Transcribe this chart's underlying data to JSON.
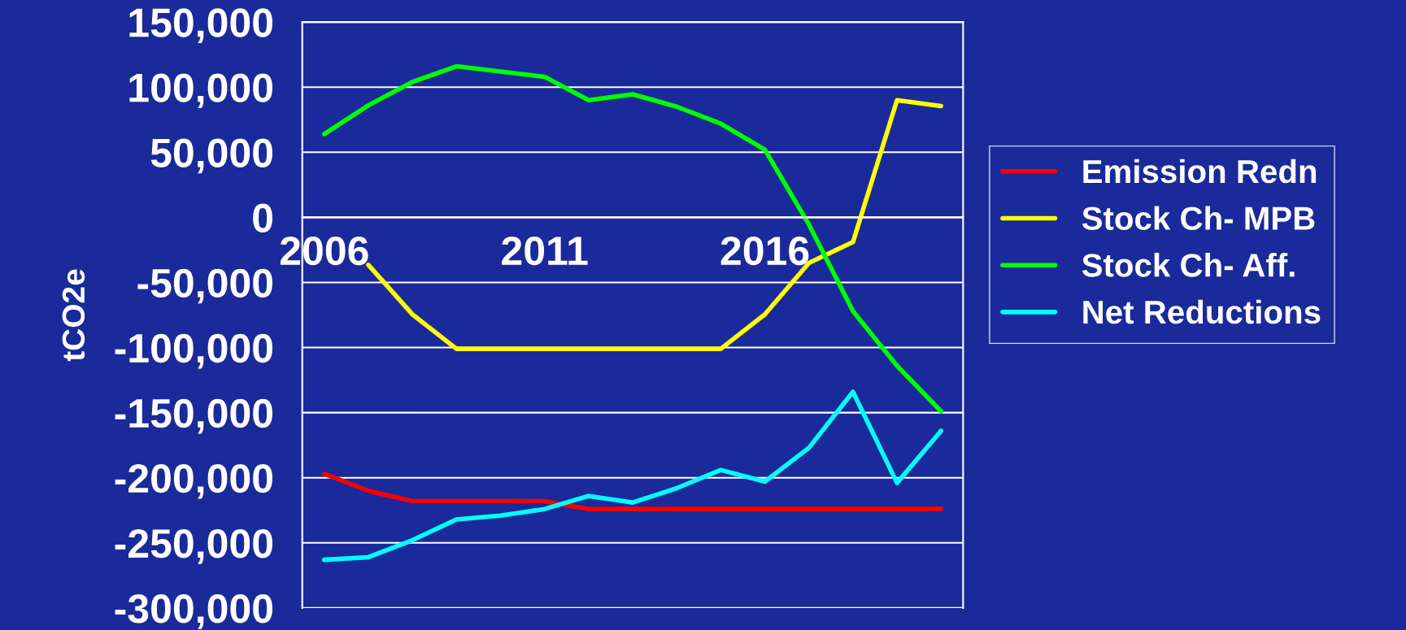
{
  "chart_data": {
    "type": "line",
    "ylabel": "tCO2e",
    "categories": [
      "2006",
      null,
      null,
      null,
      null,
      "2011",
      null,
      null,
      null,
      null,
      "2016",
      null,
      null,
      null,
      null
    ],
    "series": [
      {
        "name": "Emission Redn",
        "color": "#ff0000",
        "values": [
          -197000,
          -210000,
          -218000,
          -218000,
          -218000,
          -218000,
          -224000,
          -224000,
          -224000,
          -224000,
          -224000,
          -224000,
          -224000,
          -224000,
          -224000
        ]
      },
      {
        "name": "Stock Ch- MPB",
        "color": "#ffff00",
        "values": [
          null,
          -36500,
          -74500,
          -101000,
          -101000,
          -101000,
          -101000,
          -101000,
          -101000,
          -101000,
          -74500,
          -35000,
          -19000,
          90000,
          85500
        ]
      },
      {
        "name": "Stock Ch- Aff.",
        "color": "#00ff00",
        "values": [
          64000,
          86000,
          104000,
          116000,
          112000,
          108000,
          90000,
          94500,
          85000,
          72000,
          52000,
          -5500,
          -72000,
          -114000,
          -149000
        ]
      },
      {
        "name": "Net Reductions",
        "color": "#00ffff",
        "values": [
          -263000,
          -261000,
          -248000,
          -232000,
          -229000,
          -224000,
          -214000,
          -219000,
          -208000,
          -194000,
          -203000,
          -177000,
          -134000,
          -204000,
          -164000
        ]
      }
    ],
    "ylim": [
      -300000,
      150000
    ],
    "yticks": [
      {
        "value": -300000,
        "label": "-300,000"
      },
      {
        "value": -250000,
        "label": "-250,000"
      },
      {
        "value": -200000,
        "label": "-200,000"
      },
      {
        "value": -150000,
        "label": "-150,000"
      },
      {
        "value": -100000,
        "label": "-100,000"
      },
      {
        "value": -50000,
        "label": "-50,000"
      },
      {
        "value": 0,
        "label": "0"
      },
      {
        "value": 50000,
        "label": "50,000"
      },
      {
        "value": 100000,
        "label": "100,000"
      },
      {
        "value": 150000,
        "label": "150,000"
      }
    ],
    "grid": "y",
    "legend": "right",
    "marker": "none",
    "line_style": "solid"
  }
}
